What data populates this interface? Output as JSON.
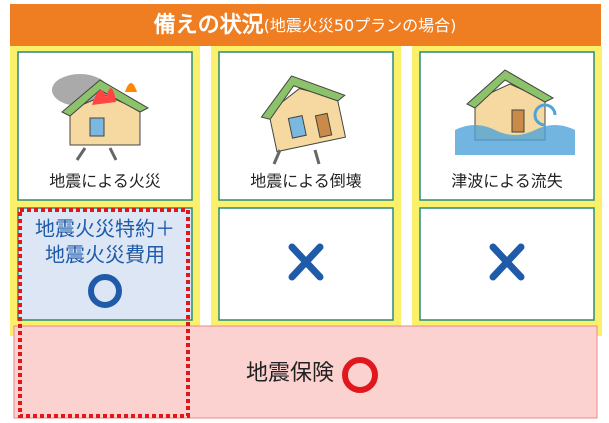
{
  "header": {
    "title": "備えの状況",
    "subtitle": "(地震火災50プランの場合)"
  },
  "columns": [
    {
      "label": "地震による火災"
    },
    {
      "label": "地震による倒壊"
    },
    {
      "label": "津波による流失"
    }
  ],
  "coverage": {
    "rider": [
      "地震火災特約＋",
      "地震火災費用"
    ],
    "insurance": "地震保険"
  }
}
